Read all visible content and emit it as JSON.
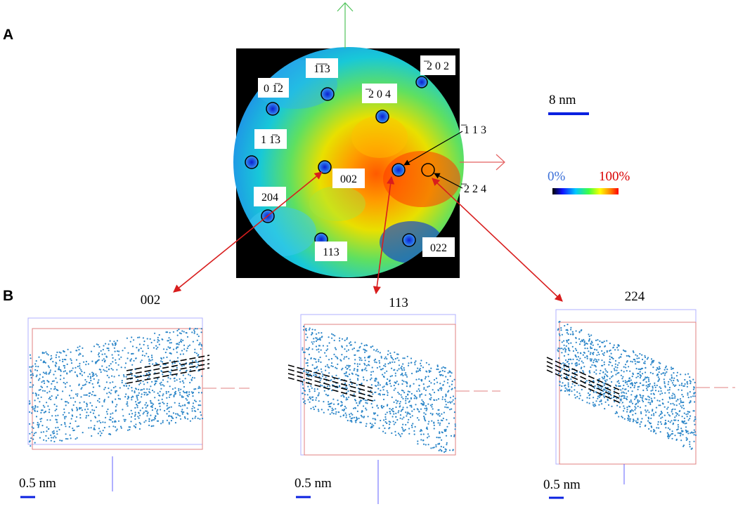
{
  "panels": {
    "a": "A",
    "b": "B"
  },
  "detector_map": {
    "scale_bar": "8 nm",
    "colorbar": {
      "min_label": "0%",
      "max_label": "100%",
      "min_color": "#3a6fd8",
      "max_color": "#d90000"
    },
    "poles": [
      {
        "label": "1̅1̅3"
      },
      {
        "label": "0 1̅2"
      },
      {
        "label": "̅2 0 4"
      },
      {
        "label": "̅2 0 2"
      },
      {
        "label": "̅1 1 3"
      },
      {
        "label": "1 1̅3"
      },
      {
        "label": "002"
      },
      {
        "label": "̅2 2 4"
      },
      {
        "label": "204"
      },
      {
        "label": "113"
      },
      {
        "label": "022"
      }
    ],
    "axis_colors": {
      "vertical": "#4fc35a",
      "horizontal": "#e46060"
    },
    "arrow_color": "#d81d1d"
  },
  "reconstructions": [
    {
      "title": "002",
      "scale_bar": "0.5 nm"
    },
    {
      "title": "113",
      "scale_bar": "0.5 nm"
    },
    {
      "title": "224",
      "scale_bar": "0.5 nm"
    }
  ]
}
